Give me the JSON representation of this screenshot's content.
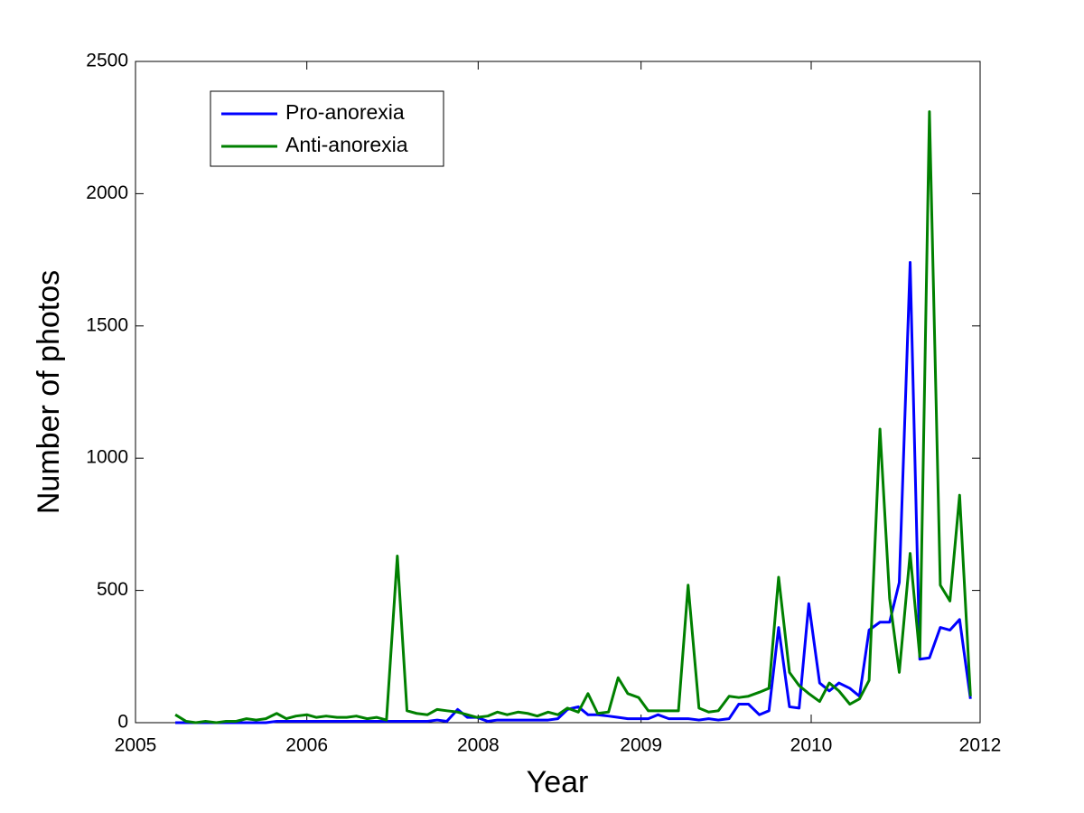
{
  "chart_data": {
    "type": "line",
    "xlabel": "Year",
    "ylabel": "Number of photos",
    "legend": "top-left",
    "xlim": [
      2005,
      2012
    ],
    "xticks": [
      2005,
      {
        "value": 2006.42,
        "label": "2006"
      },
      {
        "value": 2007.84,
        "label": "2008"
      },
      {
        "value": 2009.19,
        "label": "2009"
      },
      {
        "value": 2010.6,
        "label": "2010"
      },
      2012
    ],
    "ylim": [
      0,
      2500
    ],
    "yticks": [
      0,
      500,
      1000,
      1500,
      2000,
      2500
    ],
    "x": [
      2005.33,
      2005.42,
      2005.5,
      2005.58,
      2005.67,
      2005.75,
      2005.83,
      2005.92,
      2006.0,
      2006.08,
      2006.17,
      2006.25,
      2006.33,
      2006.42,
      2006.5,
      2006.58,
      2006.67,
      2006.75,
      2006.83,
      2006.92,
      2007.0,
      2007.08,
      2007.17,
      2007.25,
      2007.33,
      2007.42,
      2007.5,
      2007.58,
      2007.67,
      2007.75,
      2007.83,
      2007.92,
      2008.0,
      2008.08,
      2008.17,
      2008.25,
      2008.33,
      2008.42,
      2008.5,
      2008.58,
      2008.67,
      2008.75,
      2008.83,
      2008.92,
      2009.0,
      2009.08,
      2009.17,
      2009.25,
      2009.33,
      2009.42,
      2009.5,
      2009.58,
      2009.67,
      2009.75,
      2009.83,
      2009.92,
      2010.0,
      2010.08,
      2010.17,
      2010.25,
      2010.33,
      2010.42,
      2010.5,
      2010.58,
      2010.67,
      2010.75,
      2010.83,
      2010.92,
      2011.0,
      2011.08,
      2011.17,
      2011.25,
      2011.33,
      2011.42,
      2011.5,
      2011.58,
      2011.67,
      2011.75,
      2011.83,
      2011.92
    ],
    "series": [
      {
        "name": "Pro-anorexia",
        "color": "#0000ff",
        "values": [
          0,
          0,
          0,
          0,
          0,
          0,
          0,
          0,
          0,
          0,
          5,
          5,
          5,
          5,
          5,
          5,
          5,
          5,
          5,
          5,
          5,
          5,
          5,
          5,
          5,
          5,
          10,
          5,
          50,
          20,
          20,
          5,
          10,
          10,
          10,
          10,
          10,
          10,
          15,
          50,
          60,
          30,
          30,
          25,
          20,
          15,
          15,
          15,
          30,
          15,
          15,
          15,
          10,
          15,
          10,
          15,
          70,
          70,
          30,
          45,
          360,
          60,
          55,
          450,
          150,
          120,
          150,
          130,
          100,
          350,
          380,
          380,
          530,
          1740,
          240,
          245,
          360,
          350,
          390,
          90
        ]
      },
      {
        "name": "Anti-anorexia",
        "color": "#008000",
        "values": [
          30,
          5,
          0,
          5,
          0,
          5,
          5,
          15,
          10,
          15,
          35,
          15,
          25,
          30,
          20,
          25,
          20,
          20,
          25,
          15,
          20,
          10,
          630,
          45,
          35,
          30,
          50,
          45,
          40,
          30,
          20,
          25,
          40,
          30,
          40,
          35,
          25,
          40,
          30,
          55,
          40,
          110,
          35,
          40,
          170,
          110,
          95,
          45,
          45,
          45,
          45,
          520,
          55,
          40,
          45,
          100,
          95,
          100,
          115,
          130,
          550,
          190,
          140,
          110,
          80,
          150,
          120,
          70,
          90,
          160,
          1110,
          470,
          190,
          640,
          250,
          2310,
          520,
          460,
          860,
          100
        ]
      }
    ]
  }
}
